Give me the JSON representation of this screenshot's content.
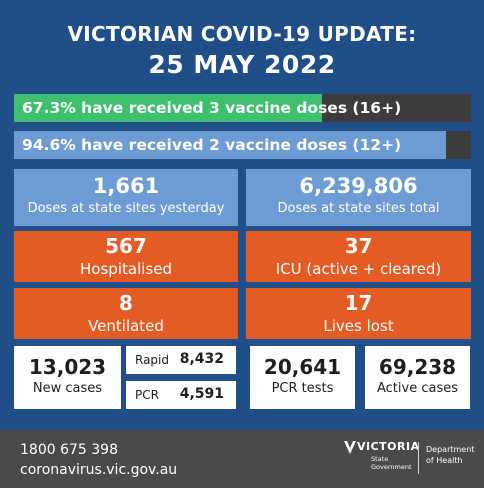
{
  "header": {
    "line1": "VICTORIAN COVID-19 UPDATE:",
    "line2": "25 MAY 2022"
  },
  "bars": [
    {
      "label": "67.3% have received 3 vaccine doses (16+)",
      "value": 0.673,
      "color": "#3dbf6e"
    },
    {
      "label": "94.6% have received 2 vaccine doses (12+)",
      "value": 0.946,
      "color": "#6d9bd3"
    }
  ],
  "stats": {
    "doses_yesterday": {
      "value": "1,661",
      "label": "Doses at state sites yesterday"
    },
    "doses_total": {
      "value": "6,239,806",
      "label": "Doses at state sites total"
    },
    "hospitalised": {
      "value": "567",
      "label": "Hospitalised"
    },
    "icu": {
      "value": "37",
      "label": "ICU (active + cleared)"
    },
    "ventilated": {
      "value": "8",
      "label": "Ventilated"
    },
    "lives_lost": {
      "value": "17",
      "label": "Lives lost"
    },
    "new_cases": {
      "value": "13,023",
      "label": "New cases"
    },
    "rapid": {
      "label": "Rapid",
      "value": "8,432"
    },
    "pcr": {
      "label": "PCR",
      "value": "4,591"
    },
    "pcr_tests": {
      "value": "20,641",
      "label": "PCR tests"
    },
    "active_cases": {
      "value": "69,238",
      "label": "Active cases"
    }
  },
  "footer": {
    "phone": "1800 675 398",
    "url": "coronavirus.vic.gov.au",
    "logo_text": "VICTORIA",
    "logo_sub1": "State",
    "logo_sub2": "Government",
    "dept1": "Department",
    "dept2": "of Health"
  },
  "colors": {
    "background": "#1f4e89",
    "blue_box": "#6d9bd3",
    "orange_box": "#e35b25",
    "green_bar": "#3dbf6e",
    "footer": "#4a4a4a"
  }
}
